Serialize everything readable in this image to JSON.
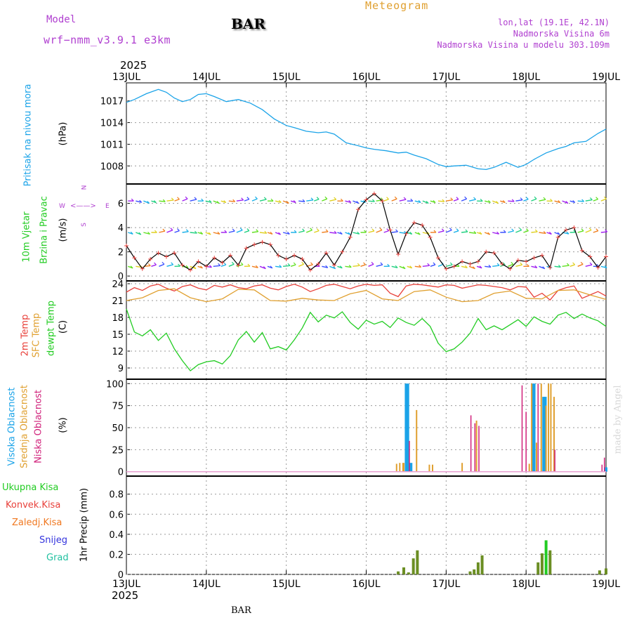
{
  "header": {
    "model_label": "Model",
    "model_name": "wrf−nmm_v3.9.1  e3km",
    "station": "BAR",
    "title": "Meteogram",
    "lonlat": "lon,lat (19.1E, 42.1N)",
    "elevation": "Nadmorska Visina 6m",
    "model_elevation": "Nadmorska Visina u modelu 303.109m",
    "year_top": "2025",
    "year_bottom": "2025",
    "footer_station": "BAR",
    "watermark": "made by Angel"
  },
  "colors": {
    "pressure": "#1aa3e8",
    "temp2m": "#e8403a",
    "sfc": "#e0a030",
    "dewpt": "#22cc22",
    "high_cloud": "#1aa3e8",
    "mid_cloud": "#e0a030",
    "low_cloud": "#d0207a",
    "total_precip": "#22cc22",
    "conv_precip": "#e8403a",
    "frz_precip": "#f07820",
    "snow": "#3333dd",
    "hail": "#20c0a0",
    "purple": "#b040d0",
    "bar_precip": "#6b8e23"
  },
  "chart_data": [
    {
      "type": "line",
      "id": "pressure",
      "x_ticks": [
        "13JUL",
        "14JUL",
        "15JUL",
        "16JUL",
        "17JUL",
        "18JUL",
        "19JUL"
      ],
      "ylabel_left": "Pritisak na nivou mora",
      "ylabel_unit": "(hPa)",
      "ylim": [
        1005.5,
        1019.5
      ],
      "yticks": [
        1008,
        1011,
        1014,
        1017
      ],
      "grid": true,
      "series": [
        {
          "name": "Pressure",
          "x": [
            0,
            0.1,
            0.25,
            0.4,
            0.5,
            0.6,
            0.7,
            0.8,
            0.9,
            1.0,
            1.1,
            1.25,
            1.4,
            1.55,
            1.7,
            1.85,
            2.0,
            2.1,
            2.25,
            2.4,
            2.5,
            2.6,
            2.75,
            2.9,
            3.0,
            3.1,
            3.25,
            3.4,
            3.5,
            3.6,
            3.75,
            3.9,
            4.0,
            4.1,
            4.25,
            4.4,
            4.5,
            4.6,
            4.75,
            4.9,
            5.0,
            5.1,
            5.25,
            5.4,
            5.5,
            5.6,
            5.75,
            5.9,
            6.0
          ],
          "values": [
            1016.8,
            1017.2,
            1018.0,
            1018.6,
            1018.2,
            1017.4,
            1016.9,
            1017.2,
            1017.9,
            1018.0,
            1017.6,
            1016.9,
            1017.2,
            1016.7,
            1015.8,
            1014.5,
            1013.6,
            1013.3,
            1012.8,
            1012.6,
            1012.7,
            1012.4,
            1011.2,
            1010.8,
            1010.5,
            1010.3,
            1010.1,
            1009.8,
            1009.9,
            1009.5,
            1009.0,
            1008.2,
            1007.9,
            1008.0,
            1008.1,
            1007.6,
            1007.5,
            1007.8,
            1008.5,
            1007.8,
            1008.2,
            1008.9,
            1009.8,
            1010.4,
            1010.7,
            1011.2,
            1011.4,
            1012.5,
            1013.1
          ]
        }
      ]
    },
    {
      "type": "line",
      "id": "wind",
      "ylabel_left": "10m Vjetar",
      "ylabel_left2": "Brzina i Pravac",
      "ylabel_unit": "(m/s)",
      "ylim": [
        -0.4,
        7.6
      ],
      "yticks": [
        0,
        2,
        4,
        6
      ],
      "legend_compass": "N",
      "legend_w": "W",
      "legend_e": "E",
      "legend_s": "S",
      "series": [
        {
          "name": "Wind speed",
          "x": [
            0,
            0.1,
            0.2,
            0.3,
            0.4,
            0.5,
            0.6,
            0.7,
            0.8,
            0.9,
            1.0,
            1.1,
            1.2,
            1.3,
            1.4,
            1.5,
            1.6,
            1.7,
            1.8,
            1.9,
            2.0,
            2.1,
            2.2,
            2.3,
            2.4,
            2.5,
            2.6,
            2.7,
            2.8,
            2.9,
            3.0,
            3.1,
            3.2,
            3.3,
            3.4,
            3.5,
            3.6,
            3.7,
            3.8,
            3.9,
            4.0,
            4.1,
            4.2,
            4.3,
            4.4,
            4.5,
            4.6,
            4.7,
            4.8,
            4.9,
            5.0,
            5.1,
            5.2,
            5.3,
            5.4,
            5.5,
            5.6,
            5.7,
            5.8,
            5.9,
            6.0
          ],
          "values": [
            2.5,
            1.5,
            0.6,
            1.4,
            1.9,
            1.6,
            1.9,
            0.9,
            0.5,
            1.2,
            0.8,
            1.5,
            1.1,
            1.7,
            0.9,
            2.3,
            2.6,
            2.8,
            2.6,
            1.7,
            1.4,
            1.7,
            1.4,
            0.5,
            1.0,
            1.9,
            0.9,
            2.0,
            3.2,
            5.5,
            6.3,
            6.8,
            6.2,
            3.8,
            1.8,
            3.5,
            4.4,
            4.2,
            3.2,
            1.5,
            0.6,
            0.8,
            1.2,
            1.0,
            1.2,
            2.0,
            1.9,
            1.0,
            0.6,
            1.3,
            1.2,
            1.5,
            1.7,
            0.7,
            3.2,
            3.8,
            4.0,
            2.1,
            1.6,
            0.7,
            1.6
          ]
        }
      ],
      "arrow_rows": [
        6.2,
        3.6,
        0.8
      ]
    },
    {
      "type": "line",
      "id": "temperature",
      "ylabel_a": "2m Temp",
      "ylabel_b": "SFC Temp",
      "ylabel_c": "dewpt Temp",
      "ylabel_unit": "(C)",
      "ylim": [
        7,
        24.5
      ],
      "yticks": [
        9,
        12,
        15,
        18,
        21,
        24
      ],
      "series": [
        {
          "name": "2m Temp",
          "x": [
            0,
            0.1,
            0.2,
            0.3,
            0.4,
            0.5,
            0.6,
            0.7,
            0.8,
            0.9,
            1.0,
            1.1,
            1.2,
            1.3,
            1.4,
            1.5,
            1.6,
            1.7,
            1.8,
            1.9,
            2.0,
            2.1,
            2.2,
            2.3,
            2.4,
            2.5,
            2.6,
            2.7,
            2.8,
            2.9,
            3.0,
            3.1,
            3.2,
            3.3,
            3.4,
            3.5,
            3.6,
            3.7,
            3.8,
            3.9,
            4.0,
            4.1,
            4.2,
            4.3,
            4.4,
            4.5,
            4.6,
            4.7,
            4.8,
            4.9,
            5.0,
            5.1,
            5.2,
            5.3,
            5.4,
            5.5,
            5.6,
            5.7,
            5.8,
            5.9,
            6.0
          ],
          "values": [
            22.5,
            23.3,
            22.8,
            23.6,
            23.9,
            23.2,
            22.7,
            23.5,
            23.8,
            23.2,
            22.9,
            23.7,
            23.4,
            23.8,
            23.3,
            23.1,
            23.6,
            23.8,
            23.2,
            22.9,
            23.5,
            23.9,
            23.4,
            22.6,
            23.1,
            23.7,
            23.9,
            23.5,
            23.1,
            23.6,
            23.9,
            23.7,
            23.8,
            22.3,
            21.7,
            23.6,
            23.9,
            23.8,
            23.6,
            23.4,
            23.8,
            23.7,
            23.2,
            23.5,
            23.8,
            23.7,
            23.5,
            23.3,
            22.9,
            23.5,
            23.4,
            21.6,
            22.3,
            21.1,
            22.8,
            23.3,
            23.6,
            21.4,
            22.0,
            22.6,
            21.8
          ]
        },
        {
          "name": "SFC Temp",
          "x": [
            0,
            0.2,
            0.4,
            0.6,
            0.8,
            1.0,
            1.2,
            1.4,
            1.6,
            1.8,
            2.0,
            2.2,
            2.4,
            2.6,
            2.8,
            3.0,
            3.2,
            3.4,
            3.6,
            3.8,
            4.0,
            4.2,
            4.4,
            4.6,
            4.8,
            5.0,
            5.2,
            5.4,
            5.6,
            5.8,
            6.0
          ],
          "values": [
            21.0,
            21.5,
            22.8,
            23.1,
            21.5,
            20.8,
            21.3,
            23.0,
            22.9,
            21.0,
            20.9,
            21.4,
            21.1,
            21.0,
            22.2,
            22.8,
            21.3,
            21.0,
            22.6,
            22.9,
            21.6,
            20.8,
            21.0,
            22.3,
            22.7,
            21.4,
            21.3,
            22.8,
            22.9,
            22.0,
            21.2
          ]
        },
        {
          "name": "dewpt Temp",
          "x": [
            0,
            0.1,
            0.2,
            0.3,
            0.4,
            0.5,
            0.6,
            0.7,
            0.8,
            0.9,
            1.0,
            1.1,
            1.2,
            1.3,
            1.4,
            1.5,
            1.6,
            1.7,
            1.8,
            1.9,
            2.0,
            2.1,
            2.2,
            2.3,
            2.4,
            2.5,
            2.6,
            2.7,
            2.8,
            2.9,
            3.0,
            3.1,
            3.2,
            3.3,
            3.4,
            3.5,
            3.6,
            3.7,
            3.8,
            3.9,
            4.0,
            4.1,
            4.2,
            4.3,
            4.4,
            4.5,
            4.6,
            4.7,
            4.8,
            4.9,
            5.0,
            5.1,
            5.2,
            5.3,
            5.4,
            5.5,
            5.6,
            5.7,
            5.8,
            5.9,
            6.0
          ],
          "values": [
            19.5,
            15.4,
            14.7,
            15.8,
            13.9,
            15.2,
            12.4,
            10.3,
            8.5,
            9.6,
            10.1,
            10.3,
            9.7,
            11.2,
            14.0,
            15.5,
            13.6,
            15.3,
            12.4,
            12.8,
            12.2,
            14.0,
            16.1,
            18.9,
            17.2,
            18.4,
            17.9,
            19.0,
            17.1,
            15.9,
            17.5,
            16.8,
            17.3,
            16.2,
            17.9,
            17.1,
            16.6,
            17.8,
            16.4,
            13.4,
            11.9,
            12.4,
            13.6,
            15.2,
            17.8,
            15.8,
            16.5,
            15.8,
            16.7,
            17.6,
            16.4,
            18.1,
            17.3,
            16.8,
            18.4,
            18.9,
            17.8,
            18.6,
            17.9,
            17.4,
            16.4
          ]
        }
      ]
    },
    {
      "type": "bar",
      "id": "cloud",
      "ylabel_a": "Visoka Oblacnost",
      "ylabel_b": "Srednja Oblacnost",
      "ylabel_c": "Niska Oblacnost",
      "ylabel_unit": "(%)",
      "ylim": [
        -5,
        105
      ],
      "yticks": [
        0,
        25,
        50,
        75,
        100
      ],
      "series": [
        {
          "name": "High",
          "x": [
            3.5,
            3.52,
            3.56,
            5.09,
            5.1,
            5.22,
            5.24,
            6.0
          ],
          "values": [
            100,
            100,
            10,
            100,
            100,
            85,
            85,
            5
          ]
        },
        {
          "name": "Mid",
          "x": [
            3.38,
            3.42,
            3.46,
            3.63,
            3.79,
            3.83,
            4.2,
            4.38,
            5.04,
            5.07,
            5.13,
            5.19,
            5.25,
            5.28,
            5.31,
            5.35,
            3.47
          ],
          "values": [
            9,
            10,
            10,
            70,
            8,
            8,
            10,
            58,
            9,
            100,
            33,
            100,
            75,
            100,
            100,
            85,
            10
          ]
        },
        {
          "name": "Low",
          "x": [
            3.54,
            4.31,
            4.36,
            4.41,
            4.95,
            5.0,
            5.15,
            5.36,
            5.95,
            5.98
          ],
          "values": [
            35,
            64,
            55,
            52,
            98,
            68,
            100,
            25,
            8,
            16
          ]
        }
      ]
    },
    {
      "type": "bar",
      "id": "precip",
      "legend": [
        "Ukupna  Kisa",
        "Konvek.Kisa",
        "Zaledj.Kisa",
        "Snijeg",
        "Grad"
      ],
      "ylabel_unit": "1hr Precip (mm)",
      "ylim": [
        0,
        0.98
      ],
      "yticks": [
        0,
        0.2,
        0.4,
        0.6,
        0.8
      ],
      "series": [
        {
          "name": "Total",
          "x": [
            3.4,
            3.47,
            3.53,
            3.59,
            3.64,
            4.3,
            4.35,
            4.4,
            4.45,
            5.15,
            5.2,
            5.25,
            5.3,
            5.92,
            6.0
          ],
          "values": [
            0.03,
            0.07,
            0.02,
            0.16,
            0.24,
            0.03,
            0.05,
            0.12,
            0.19,
            0.12,
            0.21,
            0.34,
            0.24,
            0.04,
            0.06
          ]
        }
      ]
    }
  ]
}
